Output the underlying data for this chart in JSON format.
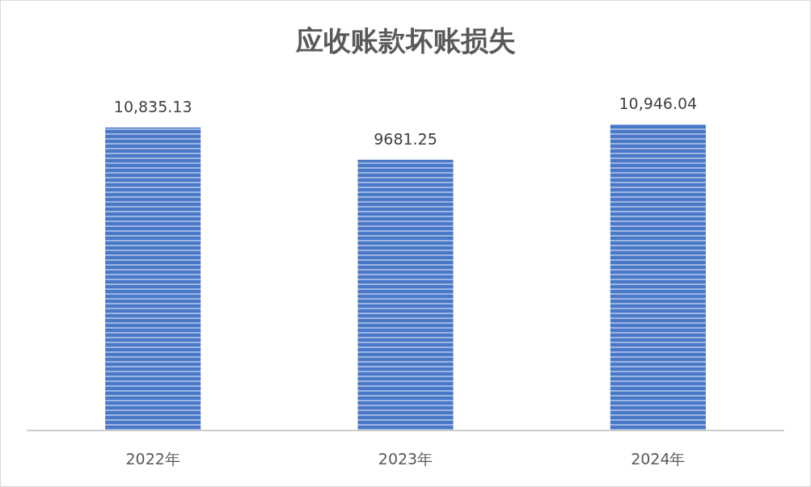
{
  "chart_data": {
    "type": "bar",
    "title": "应收账款坏账损失",
    "categories": [
      "2022年",
      "2023年",
      "2024年"
    ],
    "values": [
      10835.13,
      9681.25,
      10946.04
    ],
    "value_labels": [
      "10,835.13",
      "9681.25",
      "10,946.04"
    ],
    "color": "#4a78c8"
  }
}
